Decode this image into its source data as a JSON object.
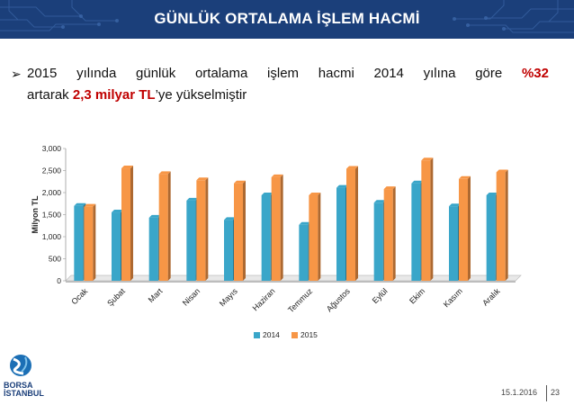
{
  "header": {
    "title": "GÜNLÜK ORTALAMA İŞLEM HACMİ"
  },
  "bullet": {
    "part1": "2015 yılında günlük ortalama işlem hacmi 2014 yılına göre ",
    "pct": "%32",
    "part2": "artarak ",
    "amount": "2,3 milyar TL",
    "part3": "’ye yükselmiştir"
  },
  "chart_data": {
    "type": "bar",
    "categories": [
      "Ocak",
      "Şubat",
      "Mart",
      "Nisan",
      "Mayıs",
      "Haziran",
      "Temmuz",
      "Ağustos",
      "Eylül",
      "Ekim",
      "Kasım",
      "Aralık"
    ],
    "series": [
      {
        "name": "2014",
        "color": "#3aa6c9",
        "values": [
          1700,
          1550,
          1430,
          1820,
          1380,
          1940,
          1270,
          2110,
          1770,
          2210,
          1690,
          1940
        ]
      },
      {
        "name": "2015",
        "color": "#f79646",
        "values": [
          1680,
          2550,
          2420,
          2280,
          2210,
          2350,
          1940,
          2540,
          2080,
          2730,
          2310,
          2460
        ]
      }
    ],
    "ylabel": "Milyon TL",
    "yticks": [
      "0",
      "500",
      "1,000",
      "1,500",
      "2,000",
      "2,500",
      "3,000"
    ],
    "ylim": [
      0,
      3000
    ],
    "legend_position": "bottom",
    "grid": false
  },
  "footer": {
    "date": "15.1.2016",
    "page": "23",
    "logo_line1": "BORSA",
    "logo_line2": "İSTANBUL"
  }
}
